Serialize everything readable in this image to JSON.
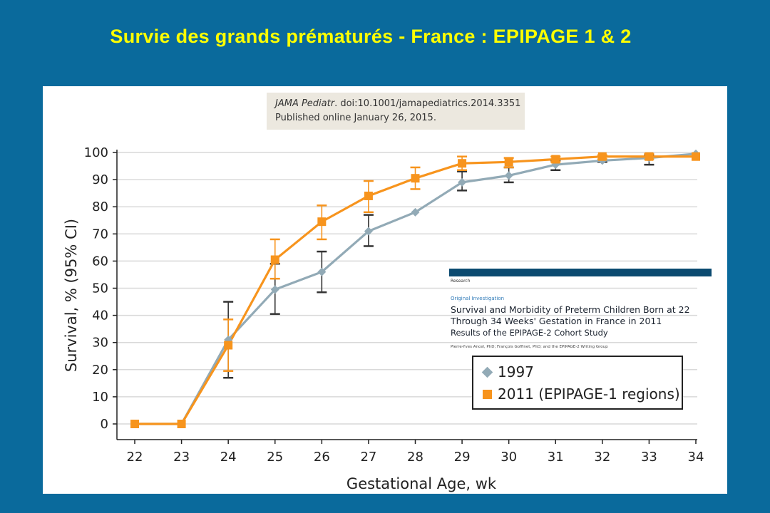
{
  "slide": {
    "title": "Survie des grands prématurés - France : EPIPAGE 1 & 2"
  },
  "citation": {
    "journal": "JAMA Pediatr",
    "line1_rest": ". doi:10.1001/jamapediatrics.2014.3351",
    "line2": "Published online January 26, 2015."
  },
  "article": {
    "section": "Research",
    "type": "Original Investigation",
    "title": "Survival and Morbidity of Preterm Children Born at 22 Through 34 Weeks' Gestation in France in 2011",
    "subtitle": "Results of the EPIPAGE-2 Cohort Study",
    "authors": "Pierre-Yves Ancel, PhD; François Goffinet, PhD; and the EPIPAGE-2 Writing Group"
  },
  "colors": {
    "background": "#0a6a9c",
    "title": "#ffff00",
    "series_1997": "#92aab6",
    "series_2011": "#f7941d"
  },
  "chart_data": {
    "type": "line",
    "title": "",
    "xlabel": "Gestational Age, wk",
    "ylabel": "Survival, % (95% CI)",
    "xlim": [
      22,
      34
    ],
    "ylim": [
      0,
      100
    ],
    "x_ticks": [
      22,
      23,
      24,
      25,
      26,
      27,
      28,
      29,
      30,
      31,
      32,
      33,
      34
    ],
    "y_ticks": [
      0,
      10,
      20,
      30,
      40,
      50,
      60,
      70,
      80,
      90,
      100
    ],
    "grid": "horizontal",
    "legend_position": "bottom-right",
    "series": [
      {
        "name": "1997",
        "marker": "diamond",
        "points": [
          {
            "x": 22,
            "y": 0
          },
          {
            "x": 23,
            "y": 0
          },
          {
            "x": 24,
            "y": 31,
            "lo": 17,
            "hi": 45
          },
          {
            "x": 25,
            "y": 49.5,
            "lo": 40.5,
            "hi": 59
          },
          {
            "x": 26,
            "y": 56,
            "lo": 48.5,
            "hi": 63.5
          },
          {
            "x": 27,
            "y": 71,
            "lo": 65.5,
            "hi": 77
          },
          {
            "x": 28,
            "y": 78
          },
          {
            "x": 29,
            "y": 89,
            "lo": 86,
            "hi": 93
          },
          {
            "x": 30,
            "y": 91.5,
            "lo": 89,
            "hi": 94.5
          },
          {
            "x": 31,
            "y": 95.5,
            "lo": 93.5,
            "hi": 97
          },
          {
            "x": 32,
            "y": 97,
            "lo": 96.5,
            "hi": 98.5
          },
          {
            "x": 33,
            "y": 98,
            "lo": 95.5,
            "hi": 99
          },
          {
            "x": 34,
            "y": 99.5
          }
        ]
      },
      {
        "name": "2011 (EPIPAGE-1 regions)",
        "marker": "square",
        "points": [
          {
            "x": 22,
            "y": 0
          },
          {
            "x": 23,
            "y": 0
          },
          {
            "x": 24,
            "y": 29,
            "lo": 19.5,
            "hi": 38.5
          },
          {
            "x": 25,
            "y": 60.5,
            "lo": 53.5,
            "hi": 68
          },
          {
            "x": 26,
            "y": 74.5,
            "lo": 68,
            "hi": 80.5
          },
          {
            "x": 27,
            "y": 84,
            "lo": 78,
            "hi": 89.5
          },
          {
            "x": 28,
            "y": 90.5,
            "lo": 86.5,
            "hi": 94.5
          },
          {
            "x": 29,
            "y": 96,
            "lo": 93.5,
            "hi": 98.5
          },
          {
            "x": 30,
            "y": 96.5,
            "lo": 94.5,
            "hi": 98
          },
          {
            "x": 31,
            "y": 97.5,
            "lo": 96.5,
            "hi": 98.5
          },
          {
            "x": 32,
            "y": 98.5,
            "lo": 97.5,
            "hi": 99
          },
          {
            "x": 33,
            "y": 98.5,
            "lo": 97.5,
            "hi": 99.5
          },
          {
            "x": 34,
            "y": 98.5
          }
        ]
      }
    ]
  }
}
